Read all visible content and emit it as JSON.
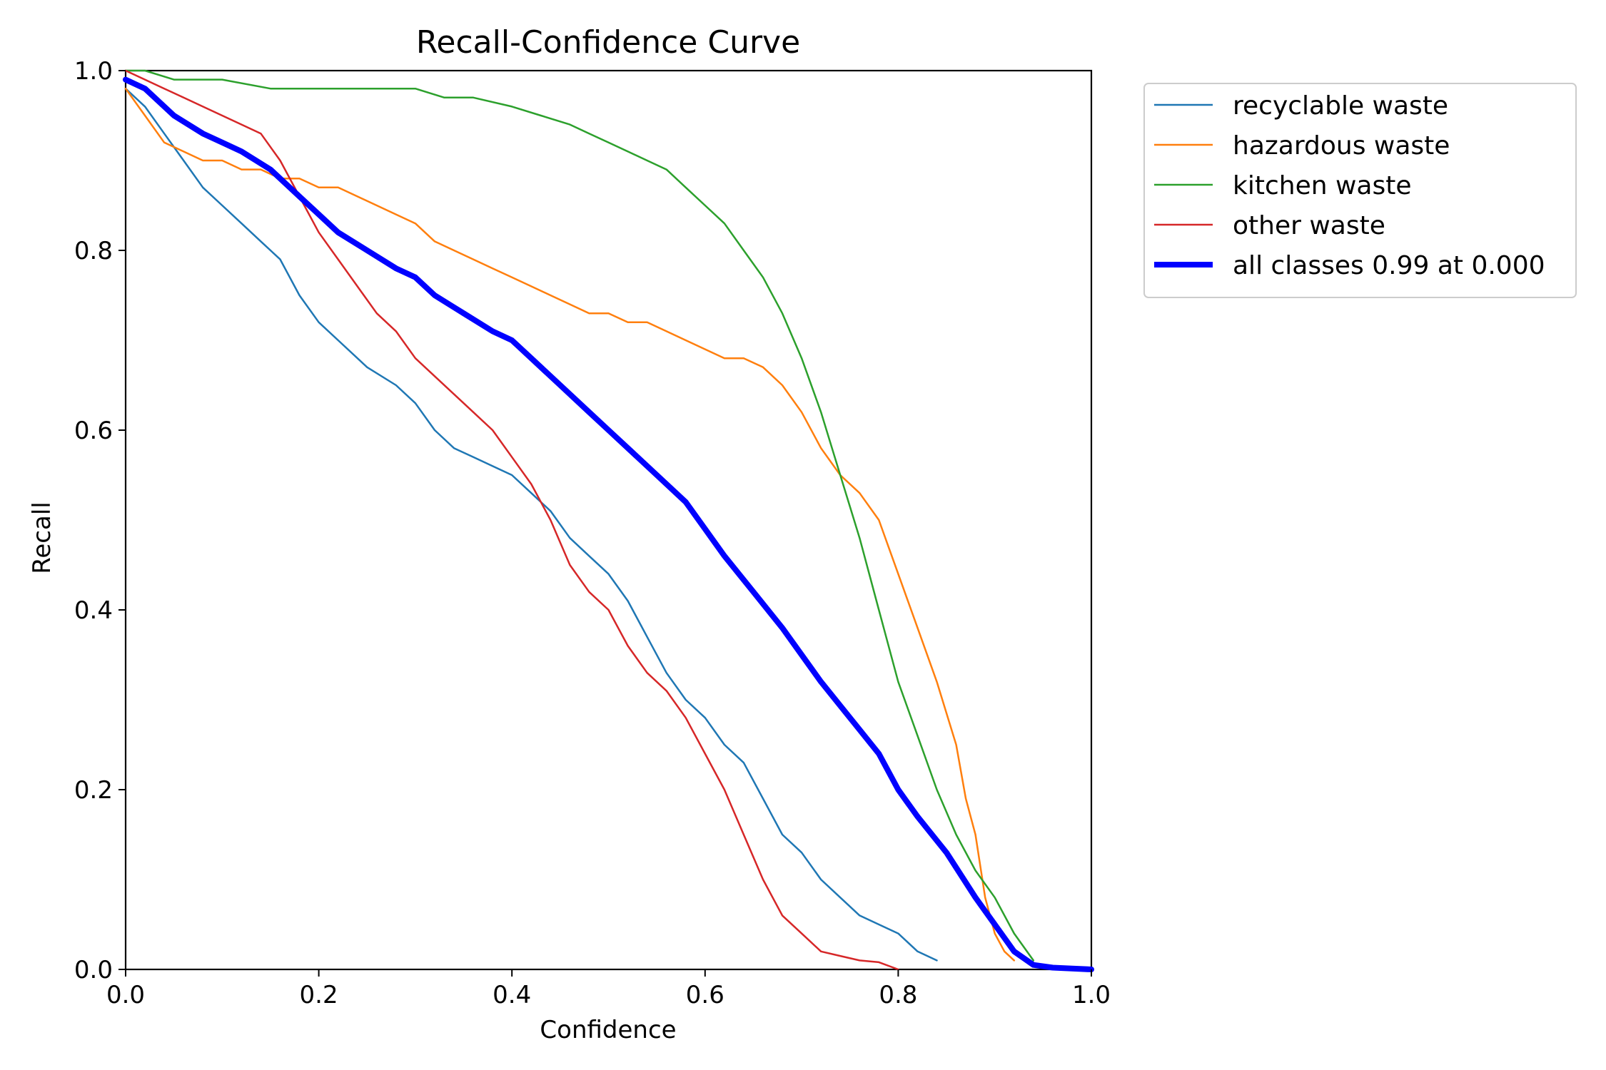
{
  "chart_data": {
    "type": "line",
    "title": "Recall-Confidence Curve",
    "xlabel": "Confidence",
    "ylabel": "Recall",
    "xlim": [
      0.0,
      1.0
    ],
    "ylim": [
      0.0,
      1.0
    ],
    "xticks": [
      "0.0",
      "0.2",
      "0.4",
      "0.6",
      "0.8",
      "1.0"
    ],
    "yticks": [
      "0.0",
      "0.2",
      "0.4",
      "0.6",
      "0.8",
      "1.0"
    ],
    "grid": false,
    "legend_position": "outside-top-right",
    "series": [
      {
        "name": "recyclable waste",
        "color": "#1f77b4",
        "x": [
          0.0,
          0.02,
          0.04,
          0.06,
          0.08,
          0.1,
          0.12,
          0.14,
          0.16,
          0.18,
          0.2,
          0.22,
          0.25,
          0.28,
          0.3,
          0.32,
          0.34,
          0.36,
          0.38,
          0.4,
          0.42,
          0.44,
          0.46,
          0.48,
          0.5,
          0.52,
          0.54,
          0.56,
          0.58,
          0.6,
          0.62,
          0.64,
          0.66,
          0.68,
          0.7,
          0.72,
          0.74,
          0.76,
          0.78,
          0.8,
          0.82,
          0.84
        ],
        "y": [
          0.98,
          0.96,
          0.93,
          0.9,
          0.87,
          0.85,
          0.83,
          0.81,
          0.79,
          0.75,
          0.72,
          0.7,
          0.67,
          0.65,
          0.63,
          0.6,
          0.58,
          0.57,
          0.56,
          0.55,
          0.53,
          0.51,
          0.48,
          0.46,
          0.44,
          0.41,
          0.37,
          0.33,
          0.3,
          0.28,
          0.25,
          0.23,
          0.19,
          0.15,
          0.13,
          0.1,
          0.08,
          0.06,
          0.05,
          0.04,
          0.02,
          0.01
        ]
      },
      {
        "name": "hazardous waste",
        "color": "#ff7f0e",
        "x": [
          0.0,
          0.02,
          0.04,
          0.06,
          0.08,
          0.1,
          0.12,
          0.14,
          0.16,
          0.18,
          0.2,
          0.22,
          0.24,
          0.26,
          0.28,
          0.3,
          0.32,
          0.34,
          0.36,
          0.38,
          0.4,
          0.42,
          0.44,
          0.46,
          0.48,
          0.5,
          0.52,
          0.54,
          0.56,
          0.58,
          0.6,
          0.62,
          0.64,
          0.66,
          0.68,
          0.7,
          0.72,
          0.74,
          0.76,
          0.78,
          0.8,
          0.82,
          0.84,
          0.86,
          0.87,
          0.88,
          0.89,
          0.9,
          0.91,
          0.92
        ],
        "y": [
          0.98,
          0.95,
          0.92,
          0.91,
          0.9,
          0.9,
          0.89,
          0.89,
          0.88,
          0.88,
          0.87,
          0.87,
          0.86,
          0.85,
          0.84,
          0.83,
          0.81,
          0.8,
          0.79,
          0.78,
          0.77,
          0.76,
          0.75,
          0.74,
          0.73,
          0.73,
          0.72,
          0.72,
          0.71,
          0.7,
          0.69,
          0.68,
          0.68,
          0.67,
          0.65,
          0.62,
          0.58,
          0.55,
          0.53,
          0.5,
          0.44,
          0.38,
          0.32,
          0.25,
          0.19,
          0.15,
          0.08,
          0.04,
          0.02,
          0.01
        ]
      },
      {
        "name": "kitchen waste",
        "color": "#2ca02c",
        "x": [
          0.0,
          0.02,
          0.05,
          0.1,
          0.15,
          0.18,
          0.2,
          0.25,
          0.3,
          0.33,
          0.36,
          0.4,
          0.43,
          0.46,
          0.48,
          0.5,
          0.52,
          0.54,
          0.56,
          0.58,
          0.6,
          0.62,
          0.64,
          0.66,
          0.68,
          0.7,
          0.72,
          0.74,
          0.76,
          0.78,
          0.8,
          0.82,
          0.84,
          0.86,
          0.88,
          0.9,
          0.92,
          0.94
        ],
        "y": [
          1.0,
          1.0,
          0.99,
          0.99,
          0.98,
          0.98,
          0.98,
          0.98,
          0.98,
          0.97,
          0.97,
          0.96,
          0.95,
          0.94,
          0.93,
          0.92,
          0.91,
          0.9,
          0.89,
          0.87,
          0.85,
          0.83,
          0.8,
          0.77,
          0.73,
          0.68,
          0.62,
          0.55,
          0.48,
          0.4,
          0.32,
          0.26,
          0.2,
          0.15,
          0.11,
          0.08,
          0.04,
          0.01
        ]
      },
      {
        "name": "other waste",
        "color": "#d62728",
        "x": [
          0.0,
          0.02,
          0.04,
          0.06,
          0.08,
          0.1,
          0.12,
          0.14,
          0.16,
          0.18,
          0.2,
          0.22,
          0.24,
          0.26,
          0.28,
          0.3,
          0.32,
          0.34,
          0.36,
          0.38,
          0.4,
          0.42,
          0.44,
          0.46,
          0.48,
          0.5,
          0.52,
          0.54,
          0.56,
          0.58,
          0.6,
          0.62,
          0.64,
          0.66,
          0.68,
          0.7,
          0.72,
          0.74,
          0.76,
          0.78,
          0.8
        ],
        "y": [
          1.0,
          0.99,
          0.98,
          0.97,
          0.96,
          0.95,
          0.94,
          0.93,
          0.9,
          0.86,
          0.82,
          0.79,
          0.76,
          0.73,
          0.71,
          0.68,
          0.66,
          0.64,
          0.62,
          0.6,
          0.57,
          0.54,
          0.5,
          0.45,
          0.42,
          0.4,
          0.36,
          0.33,
          0.31,
          0.28,
          0.24,
          0.2,
          0.15,
          0.1,
          0.06,
          0.04,
          0.02,
          0.015,
          0.01,
          0.008,
          0.0
        ]
      },
      {
        "name": "all classes 0.99 at 0.000",
        "color": "#0000ff",
        "x": [
          0.0,
          0.02,
          0.05,
          0.08,
          0.1,
          0.12,
          0.15,
          0.18,
          0.2,
          0.22,
          0.25,
          0.28,
          0.3,
          0.32,
          0.35,
          0.38,
          0.4,
          0.42,
          0.45,
          0.48,
          0.5,
          0.52,
          0.55,
          0.58,
          0.6,
          0.62,
          0.65,
          0.68,
          0.7,
          0.72,
          0.75,
          0.78,
          0.8,
          0.82,
          0.85,
          0.88,
          0.9,
          0.92,
          0.94,
          0.96,
          0.98,
          1.0
        ],
        "y": [
          0.99,
          0.98,
          0.95,
          0.93,
          0.92,
          0.91,
          0.89,
          0.86,
          0.84,
          0.82,
          0.8,
          0.78,
          0.77,
          0.75,
          0.73,
          0.71,
          0.7,
          0.68,
          0.65,
          0.62,
          0.6,
          0.58,
          0.55,
          0.52,
          0.49,
          0.46,
          0.42,
          0.38,
          0.35,
          0.32,
          0.28,
          0.24,
          0.2,
          0.17,
          0.13,
          0.08,
          0.05,
          0.02,
          0.005,
          0.002,
          0.001,
          0.0
        ]
      }
    ]
  }
}
